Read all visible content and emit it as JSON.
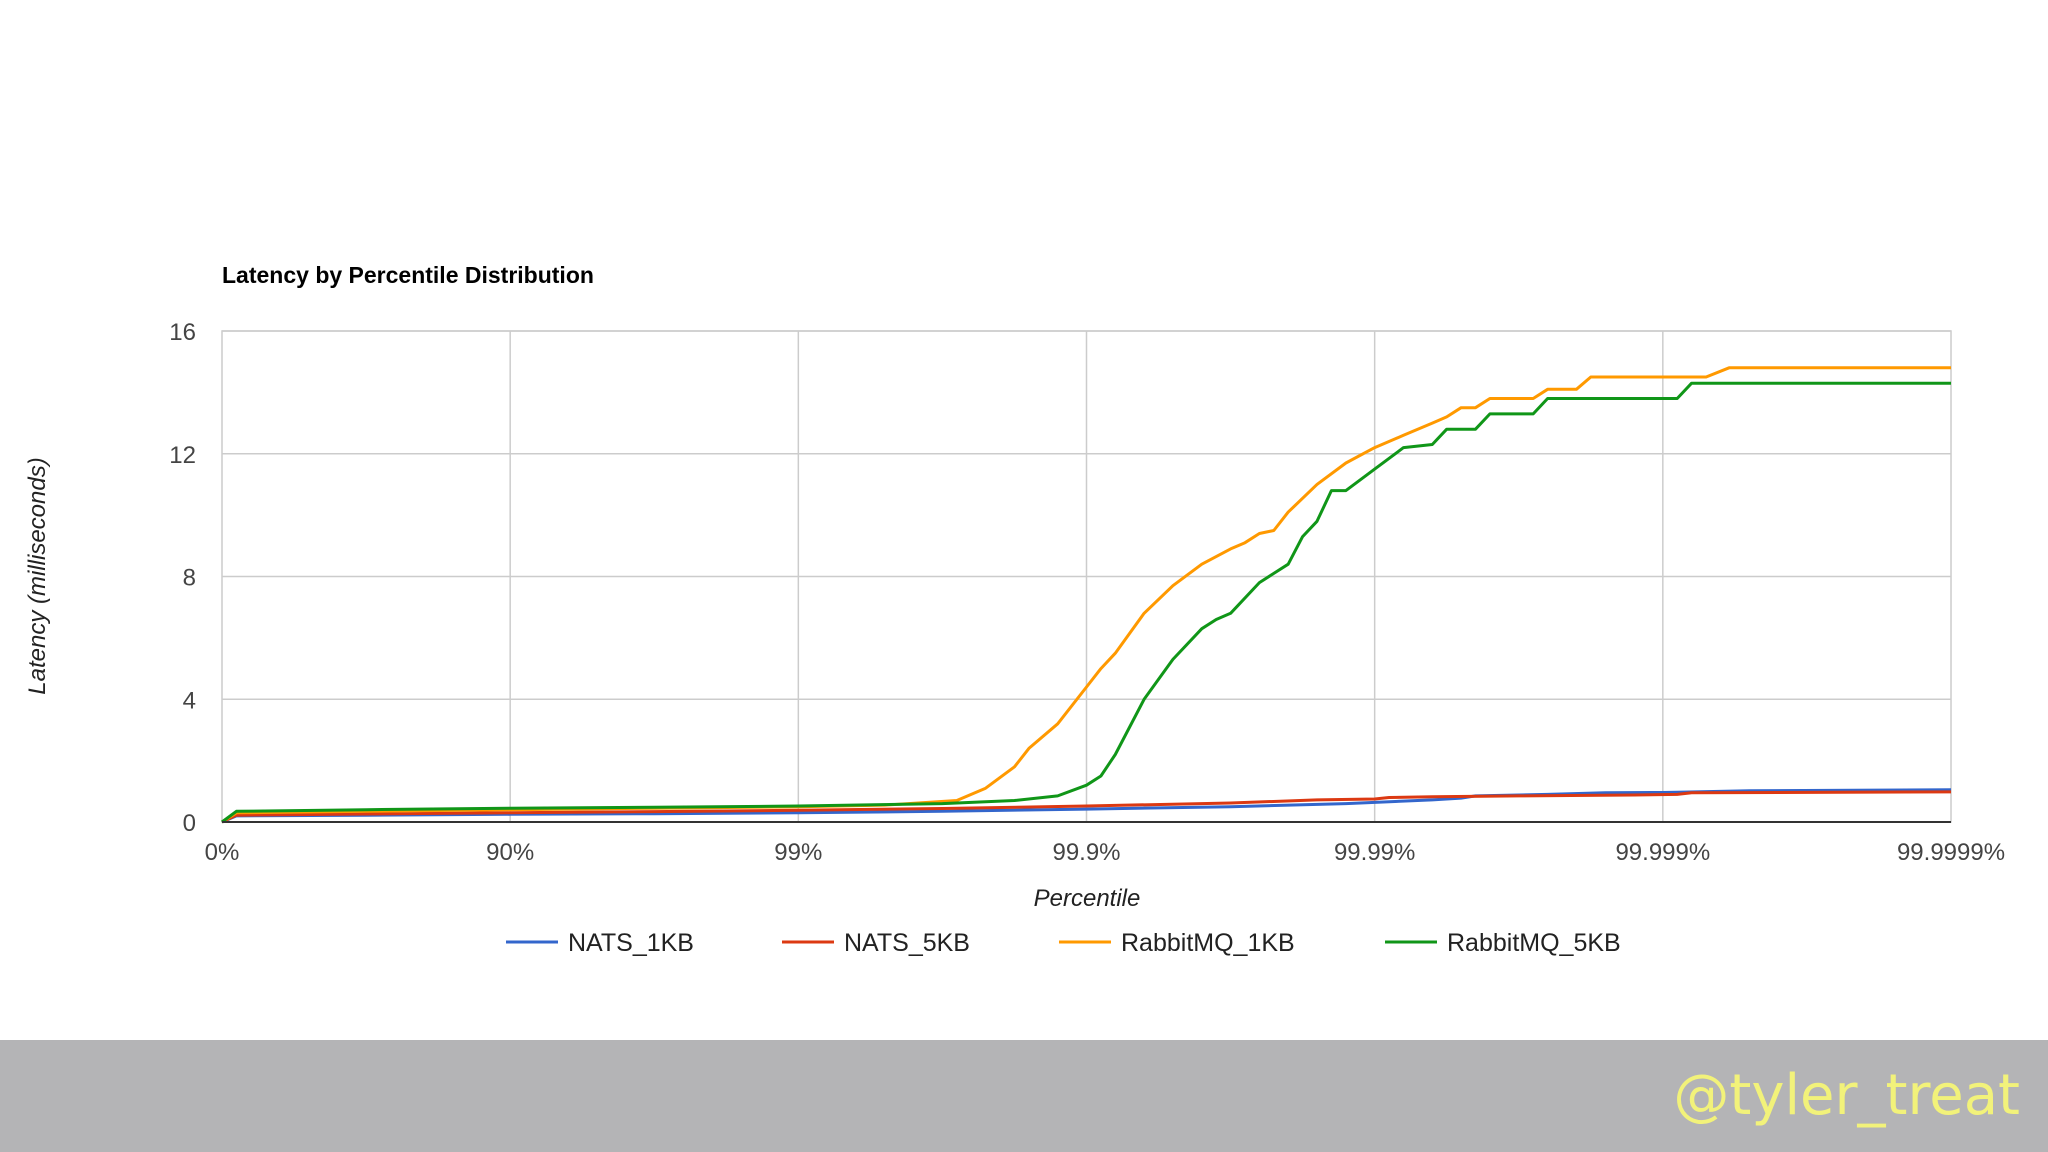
{
  "chart_data": {
    "type": "line",
    "title": "Latency by Percentile Distribution",
    "xlabel": "Percentile",
    "ylabel": "Latency (milliseconds)",
    "x_scale": "log-percentile (decades of nines)",
    "x_ticks": [
      {
        "pos": 0,
        "label": "0%"
      },
      {
        "pos": 1,
        "label": "90%"
      },
      {
        "pos": 2,
        "label": "99%"
      },
      {
        "pos": 3,
        "label": "99.9%"
      },
      {
        "pos": 4,
        "label": "99.99%"
      },
      {
        "pos": 5,
        "label": "99.999%"
      },
      {
        "pos": 6,
        "label": "99.9999%"
      }
    ],
    "xlim": [
      0,
      6
    ],
    "y_ticks": [
      0,
      4,
      8,
      12,
      16
    ],
    "ylim": [
      0,
      16
    ],
    "grid": true,
    "legend_position": "bottom",
    "series": [
      {
        "name": "NATS_1KB",
        "color": "#3366cc",
        "points": [
          [
            0,
            0
          ],
          [
            0.05,
            0.2
          ],
          [
            0.5,
            0.22
          ],
          [
            1,
            0.25
          ],
          [
            1.5,
            0.27
          ],
          [
            2,
            0.3
          ],
          [
            2.5,
            0.35
          ],
          [
            3,
            0.42
          ],
          [
            3.5,
            0.5
          ],
          [
            3.9,
            0.6
          ],
          [
            4.2,
            0.72
          ],
          [
            4.3,
            0.78
          ],
          [
            4.35,
            0.85
          ],
          [
            4.6,
            0.9
          ],
          [
            4.8,
            0.95
          ],
          [
            5,
            0.96
          ],
          [
            5.05,
            0.97
          ],
          [
            5.3,
            1.02
          ],
          [
            6,
            1.05
          ]
        ]
      },
      {
        "name": "NATS_5KB",
        "color": "#dc3912",
        "points": [
          [
            0,
            0
          ],
          [
            0.05,
            0.22
          ],
          [
            0.5,
            0.26
          ],
          [
            1,
            0.3
          ],
          [
            1.5,
            0.34
          ],
          [
            2,
            0.38
          ],
          [
            2.5,
            0.44
          ],
          [
            3,
            0.52
          ],
          [
            3.5,
            0.62
          ],
          [
            3.8,
            0.72
          ],
          [
            4,
            0.75
          ],
          [
            4.05,
            0.8
          ],
          [
            4.2,
            0.82
          ],
          [
            4.5,
            0.85
          ],
          [
            4.9,
            0.88
          ],
          [
            5.05,
            0.9
          ],
          [
            5.1,
            0.95
          ],
          [
            6,
            0.98
          ]
        ]
      },
      {
        "name": "RabbitMQ_1KB",
        "color": "#ff9900",
        "points": [
          [
            0,
            0
          ],
          [
            0.05,
            0.3
          ],
          [
            0.5,
            0.35
          ],
          [
            1,
            0.4
          ],
          [
            1.5,
            0.45
          ],
          [
            2,
            0.5
          ],
          [
            2.3,
            0.55
          ],
          [
            2.55,
            0.7
          ],
          [
            2.65,
            1.1
          ],
          [
            2.75,
            1.8
          ],
          [
            2.8,
            2.4
          ],
          [
            2.9,
            3.2
          ],
          [
            3,
            4.4
          ],
          [
            3.05,
            5
          ],
          [
            3.1,
            5.5
          ],
          [
            3.2,
            6.8
          ],
          [
            3.3,
            7.7
          ],
          [
            3.4,
            8.4
          ],
          [
            3.5,
            8.9
          ],
          [
            3.55,
            9.1
          ],
          [
            3.6,
            9.4
          ],
          [
            3.65,
            9.5
          ],
          [
            3.7,
            10.1
          ],
          [
            3.8,
            11
          ],
          [
            3.9,
            11.7
          ],
          [
            4,
            12.2
          ],
          [
            4.1,
            12.6
          ],
          [
            4.2,
            13
          ],
          [
            4.25,
            13.2
          ],
          [
            4.3,
            13.5
          ],
          [
            4.35,
            13.5
          ],
          [
            4.4,
            13.8
          ],
          [
            4.5,
            13.8
          ],
          [
            4.55,
            13.8
          ],
          [
            4.6,
            14.1
          ],
          [
            4.7,
            14.1
          ],
          [
            4.75,
            14.5
          ],
          [
            5,
            14.5
          ],
          [
            5.15,
            14.5
          ],
          [
            5.23,
            14.8
          ],
          [
            6,
            14.8
          ]
        ]
      },
      {
        "name": "RabbitMQ_5KB",
        "color": "#109618",
        "points": [
          [
            0,
            0
          ],
          [
            0.05,
            0.35
          ],
          [
            0.5,
            0.4
          ],
          [
            1,
            0.45
          ],
          [
            1.5,
            0.48
          ],
          [
            2,
            0.52
          ],
          [
            2.5,
            0.6
          ],
          [
            2.75,
            0.7
          ],
          [
            2.9,
            0.85
          ],
          [
            3,
            1.2
          ],
          [
            3.05,
            1.5
          ],
          [
            3.1,
            2.2
          ],
          [
            3.2,
            4
          ],
          [
            3.3,
            5.3
          ],
          [
            3.4,
            6.3
          ],
          [
            3.45,
            6.6
          ],
          [
            3.5,
            6.8
          ],
          [
            3.6,
            7.8
          ],
          [
            3.65,
            8.1
          ],
          [
            3.7,
            8.4
          ],
          [
            3.75,
            9.3
          ],
          [
            3.8,
            9.8
          ],
          [
            3.85,
            10.8
          ],
          [
            3.9,
            10.8
          ],
          [
            4,
            11.5
          ],
          [
            4.1,
            12.2
          ],
          [
            4.2,
            12.3
          ],
          [
            4.25,
            12.8
          ],
          [
            4.35,
            12.8
          ],
          [
            4.4,
            13.3
          ],
          [
            4.55,
            13.3
          ],
          [
            4.6,
            13.8
          ],
          [
            4.8,
            13.8
          ],
          [
            5.05,
            13.8
          ],
          [
            5.1,
            14.3
          ],
          [
            6,
            14.3
          ]
        ]
      }
    ]
  },
  "footer": {
    "handle": "@tyler_treat",
    "background_color": "#b4b4b6",
    "text_color": "#f2f27a"
  }
}
